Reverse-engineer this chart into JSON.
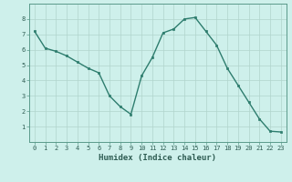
{
  "x": [
    0,
    1,
    2,
    3,
    4,
    5,
    6,
    7,
    8,
    9,
    10,
    11,
    12,
    13,
    14,
    15,
    16,
    17,
    18,
    19,
    20,
    21,
    22,
    23
  ],
  "y": [
    7.2,
    6.1,
    5.9,
    5.6,
    5.2,
    4.8,
    4.5,
    3.0,
    2.3,
    1.8,
    4.3,
    5.5,
    7.1,
    7.35,
    8.0,
    8.1,
    7.2,
    6.3,
    4.8,
    3.7,
    2.6,
    1.5,
    0.7,
    0.65
  ],
  "line_color": "#2e7d6e",
  "marker": "s",
  "marker_size": 2,
  "bg_color": "#cef0eb",
  "grid_color": "#b0d4cc",
  "xlabel": "Humidex (Indice chaleur)",
  "xlim": [
    -0.5,
    23.5
  ],
  "ylim": [
    0,
    9
  ],
  "yticks": [
    1,
    2,
    3,
    4,
    5,
    6,
    7,
    8
  ],
  "xticks": [
    0,
    1,
    2,
    3,
    4,
    5,
    6,
    7,
    8,
    9,
    10,
    11,
    12,
    13,
    14,
    15,
    16,
    17,
    18,
    19,
    20,
    21,
    22,
    23
  ],
  "xtick_labels": [
    "0",
    "1",
    "2",
    "3",
    "4",
    "5",
    "6",
    "7",
    "8",
    "9",
    "10",
    "11",
    "12",
    "13",
    "14",
    "15",
    "16",
    "17",
    "18",
    "19",
    "20",
    "21",
    "22",
    "23"
  ],
  "tick_fontsize": 5,
  "xlabel_fontsize": 6.5,
  "linewidth": 1.0
}
